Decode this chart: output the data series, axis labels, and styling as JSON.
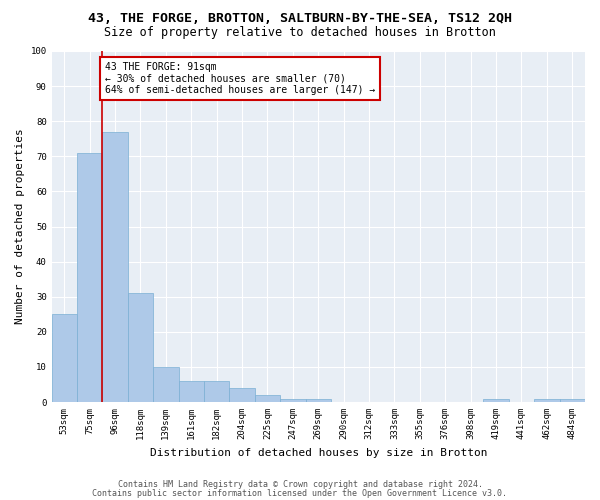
{
  "title1": "43, THE FORGE, BROTTON, SALTBURN-BY-THE-SEA, TS12 2QH",
  "title2": "Size of property relative to detached houses in Brotton",
  "xlabel": "Distribution of detached houses by size in Brotton",
  "ylabel": "Number of detached properties",
  "footer1": "Contains HM Land Registry data © Crown copyright and database right 2024.",
  "footer2": "Contains public sector information licensed under the Open Government Licence v3.0.",
  "categories": [
    "53sqm",
    "75sqm",
    "96sqm",
    "118sqm",
    "139sqm",
    "161sqm",
    "182sqm",
    "204sqm",
    "225sqm",
    "247sqm",
    "269sqm",
    "290sqm",
    "312sqm",
    "333sqm",
    "355sqm",
    "376sqm",
    "398sqm",
    "419sqm",
    "441sqm",
    "462sqm",
    "484sqm"
  ],
  "values": [
    25,
    71,
    77,
    31,
    10,
    6,
    6,
    4,
    2,
    1,
    1,
    0,
    0,
    0,
    0,
    0,
    0,
    1,
    0,
    1,
    1
  ],
  "bar_color": "#aec9e8",
  "bar_edge_color": "#7aafd4",
  "red_line_x": 1.5,
  "annotation_text": "43 THE FORGE: 91sqm\n← 30% of detached houses are smaller (70)\n64% of semi-detached houses are larger (147) →",
  "annotation_box_color": "white",
  "annotation_border_color": "#cc0000",
  "ylim": [
    0,
    100
  ],
  "yticks": [
    0,
    10,
    20,
    30,
    40,
    50,
    60,
    70,
    80,
    90,
    100
  ],
  "background_color": "#e8eef5",
  "grid_color": "white",
  "title_fontsize": 9.5,
  "subtitle_fontsize": 8.5,
  "axis_label_fontsize": 8,
  "tick_fontsize": 6.5,
  "footer_fontsize": 6,
  "ann_fontsize": 7
}
